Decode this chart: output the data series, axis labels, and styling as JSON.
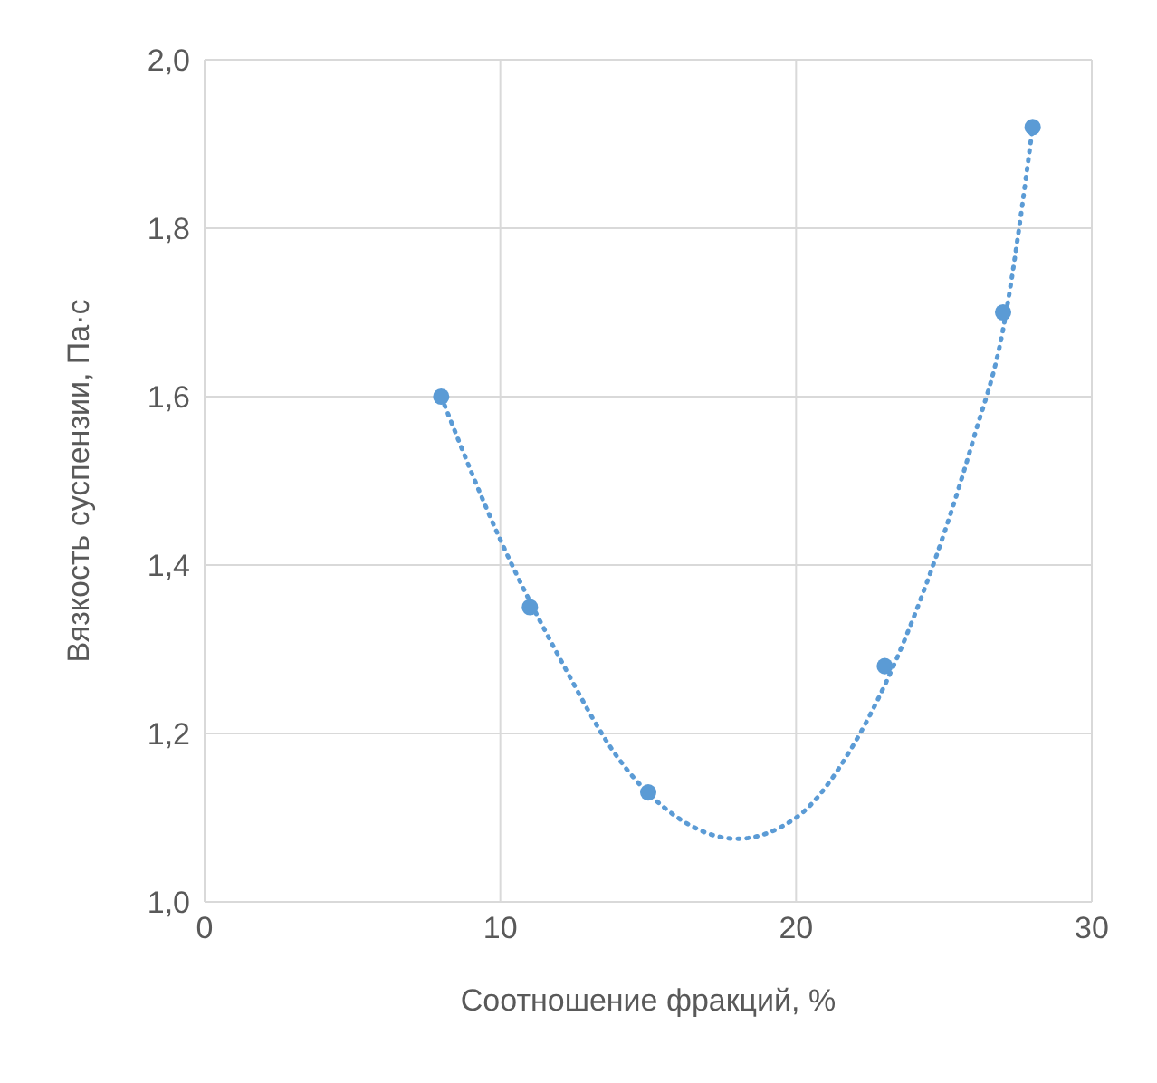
{
  "chart_data": {
    "type": "scatter",
    "xlabel": "Соотношение фракций, %",
    "ylabel": "Вязкость суспензии, Па·с",
    "xlim": [
      0,
      30
    ],
    "xticks": [
      0,
      10,
      20,
      30
    ],
    "ylim": [
      1,
      2
    ],
    "yticks": [
      {
        "value": 1,
        "label": "1,0"
      },
      {
        "value": 1.2,
        "label": "1,2"
      },
      {
        "value": 1.4,
        "label": "1,4"
      },
      {
        "value": 1.6,
        "label": "1,6"
      },
      {
        "value": 1.8,
        "label": "1,8"
      },
      {
        "value": 2,
        "label": "2,0"
      }
    ],
    "grid": true,
    "series": [
      {
        "color": "#5b9bd5",
        "marker": "circle",
        "x": [
          8,
          11,
          15,
          23,
          27,
          28
        ],
        "values": [
          1.6,
          1.35,
          1.13,
          1.28,
          1.7,
          1.92
        ]
      },
      {
        "type": "line",
        "color": "#5b9bd5",
        "marker": "none",
        "line_style": "dotted",
        "x": [
          8,
          10,
          12,
          14,
          16,
          18,
          20,
          22,
          24,
          26,
          27,
          28
        ],
        "values": [
          1.6,
          1.43,
          1.29,
          1.17,
          1.1,
          1.075,
          1.1,
          1.19,
          1.34,
          1.55,
          1.68,
          1.92
        ]
      }
    ]
  }
}
